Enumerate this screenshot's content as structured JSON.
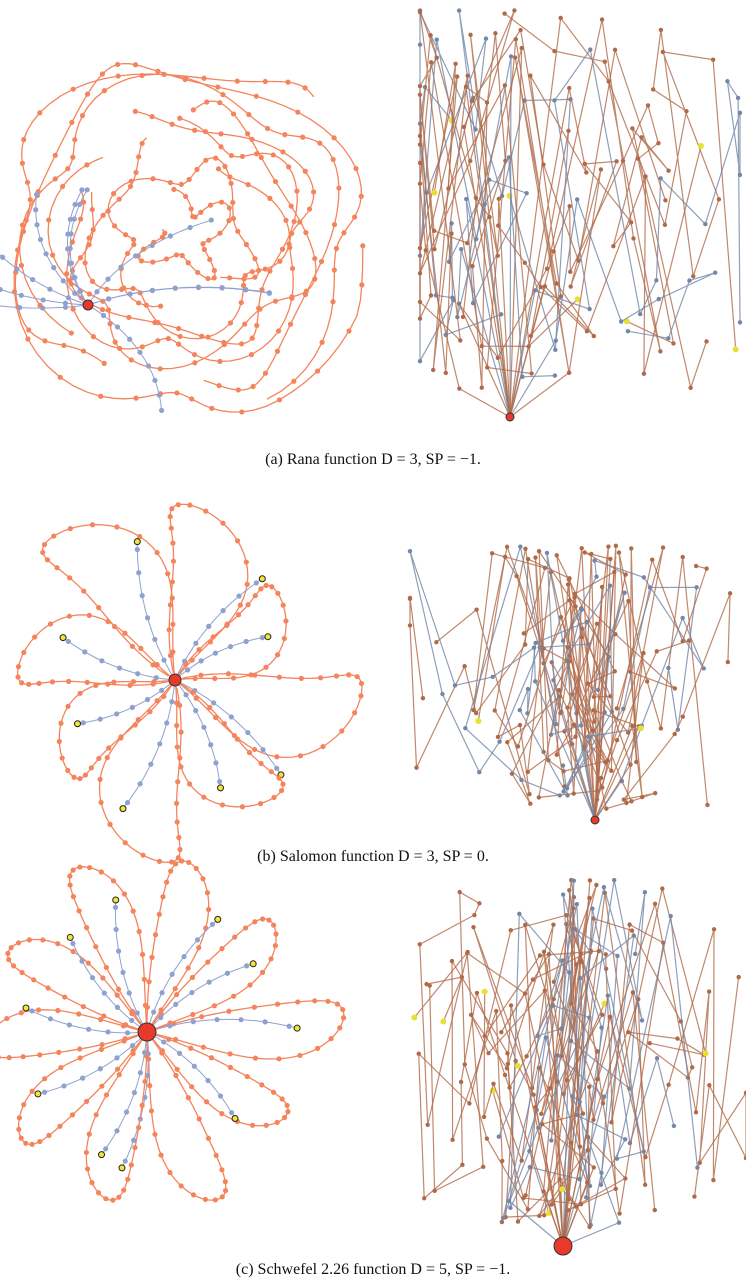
{
  "figure": {
    "captions": [
      "(a) Rana function D = 3, SP = −1.",
      "(b) Salomon function D = 3, SP = 0.",
      "(c) Schwefel 2.26 function D = 5, SP = −1."
    ]
  }
}
